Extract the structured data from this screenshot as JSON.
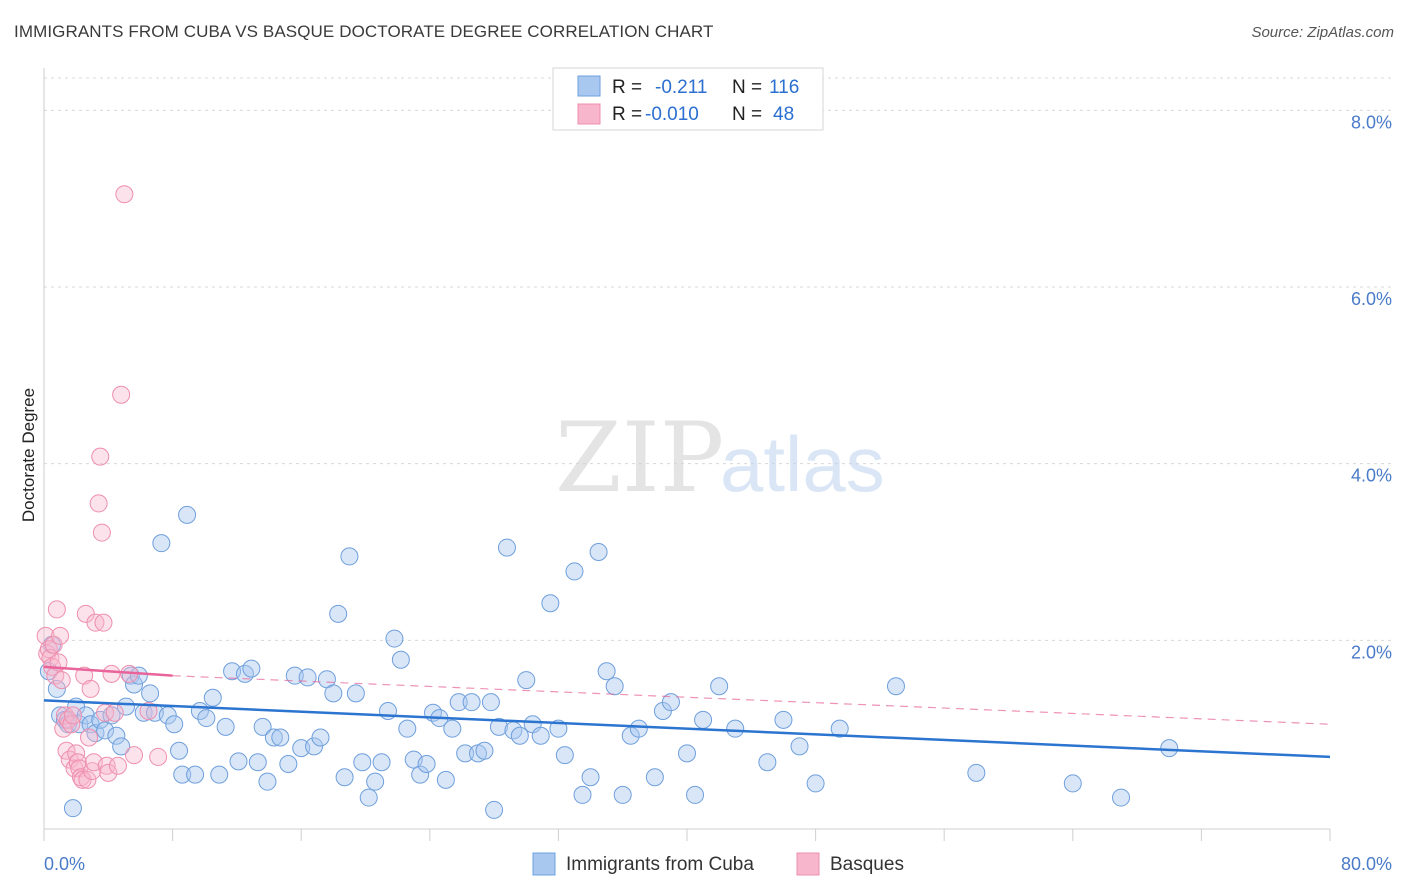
{
  "title": "IMMIGRANTS FROM CUBA VS BASQUE DOCTORATE DEGREE CORRELATION CHART",
  "source": "Source: ZipAtlas.com",
  "watermark": {
    "zip": "ZIP",
    "atlas": "atlas"
  },
  "colors": {
    "blue_fill": "#a8c8f0",
    "blue_stroke": "#6f9fdc",
    "blue_line": "#2b74d0",
    "pink_fill": "#f7b6cc",
    "pink_stroke": "#ee8fae",
    "pink_line": "#e8649a",
    "grid": "#d8d8d8",
    "axis_label": "#4a7bc8"
  },
  "legend_top": {
    "rows": [
      {
        "r_label": "R =",
        "r_value": "-0.211",
        "n_label": "N =",
        "n_value": "116"
      },
      {
        "r_label": "R =",
        "r_value": "-0.010",
        "n_label": "N =",
        "n_value": "48"
      }
    ]
  },
  "chart_data": {
    "type": "scatter",
    "title": "IMMIGRANTS FROM CUBA VS BASQUE DOCTORATE DEGREE CORRELATION CHART",
    "xlabel": "",
    "ylabel": "Doctorate Degree",
    "xlim": [
      0,
      80
    ],
    "ylim": [
      0,
      8.4
    ],
    "x_tick_labels": [
      "0.0%",
      "80.0%"
    ],
    "y_ticks": [
      2,
      4,
      6,
      8
    ],
    "y_tick_labels": [
      "2.0%",
      "4.0%",
      "6.0%",
      "8.0%"
    ],
    "legend": [
      "Immigrants from Cuba",
      "Basques"
    ],
    "series": [
      {
        "name": "Immigrants from Cuba",
        "color": "#a8c8f0",
        "trend": {
          "x0": 0,
          "y0": 1.32,
          "x1": 80,
          "y1": 0.68
        },
        "points": [
          [
            0.3,
            1.65
          ],
          [
            0.5,
            1.95
          ],
          [
            0.8,
            1.45
          ],
          [
            1.0,
            1.15
          ],
          [
            1.3,
            1.1
          ],
          [
            1.5,
            1.05
          ],
          [
            2.0,
            1.25
          ],
          [
            2.2,
            1.05
          ],
          [
            2.6,
            1.15
          ],
          [
            2.9,
            1.05
          ],
          [
            3.2,
            0.95
          ],
          [
            3.5,
            1.1
          ],
          [
            3.8,
            0.98
          ],
          [
            4.2,
            1.15
          ],
          [
            4.5,
            0.92
          ],
          [
            4.8,
            0.8
          ],
          [
            5.1,
            1.25
          ],
          [
            5.4,
            1.6
          ],
          [
            5.6,
            1.5
          ],
          [
            5.9,
            1.6
          ],
          [
            6.2,
            1.18
          ],
          [
            6.6,
            1.4
          ],
          [
            6.9,
            1.18
          ],
          [
            7.3,
            3.1
          ],
          [
            7.7,
            1.15
          ],
          [
            8.1,
            1.05
          ],
          [
            8.4,
            0.75
          ],
          [
            8.6,
            0.48
          ],
          [
            8.9,
            3.42
          ],
          [
            9.4,
            0.48
          ],
          [
            9.7,
            1.2
          ],
          [
            10.1,
            1.12
          ],
          [
            10.5,
            1.35
          ],
          [
            10.9,
            0.48
          ],
          [
            11.3,
            1.02
          ],
          [
            11.7,
            1.65
          ],
          [
            12.1,
            0.63
          ],
          [
            12.5,
            1.62
          ],
          [
            12.9,
            1.68
          ],
          [
            13.3,
            0.62
          ],
          [
            13.6,
            1.02
          ],
          [
            13.9,
            0.4
          ],
          [
            14.3,
            0.9
          ],
          [
            14.7,
            0.9
          ],
          [
            15.2,
            0.6
          ],
          [
            15.6,
            1.6
          ],
          [
            16.0,
            0.78
          ],
          [
            16.4,
            1.58
          ],
          [
            16.8,
            0.8
          ],
          [
            17.2,
            0.9
          ],
          [
            17.6,
            1.56
          ],
          [
            18.0,
            1.4
          ],
          [
            18.3,
            2.3
          ],
          [
            18.7,
            0.45
          ],
          [
            19.0,
            2.95
          ],
          [
            19.4,
            1.4
          ],
          [
            19.8,
            0.62
          ],
          [
            20.2,
            0.22
          ],
          [
            20.6,
            0.4
          ],
          [
            21.0,
            0.62
          ],
          [
            21.4,
            1.2
          ],
          [
            21.8,
            2.02
          ],
          [
            22.2,
            1.78
          ],
          [
            22.6,
            1.0
          ],
          [
            23.0,
            0.65
          ],
          [
            23.4,
            0.48
          ],
          [
            23.8,
            0.6
          ],
          [
            24.2,
            1.18
          ],
          [
            24.6,
            1.12
          ],
          [
            25.0,
            0.42
          ],
          [
            25.4,
            1.0
          ],
          [
            25.8,
            1.3
          ],
          [
            26.2,
            0.72
          ],
          [
            26.6,
            1.3
          ],
          [
            27.0,
            0.72
          ],
          [
            27.4,
            0.75
          ],
          [
            27.8,
            1.3
          ],
          [
            28.3,
            1.02
          ],
          [
            28.8,
            3.05
          ],
          [
            29.2,
            0.98
          ],
          [
            29.6,
            0.92
          ],
          [
            30.0,
            1.55
          ],
          [
            30.4,
            1.05
          ],
          [
            30.9,
            0.92
          ],
          [
            31.5,
            2.42
          ],
          [
            32.0,
            1.0
          ],
          [
            32.4,
            0.7
          ],
          [
            33.0,
            2.78
          ],
          [
            33.5,
            0.25
          ],
          [
            34.0,
            0.45
          ],
          [
            34.5,
            3.0
          ],
          [
            35.0,
            1.65
          ],
          [
            35.5,
            1.48
          ],
          [
            36.0,
            0.25
          ],
          [
            36.5,
            0.92
          ],
          [
            37.0,
            1.0
          ],
          [
            38.0,
            0.45
          ],
          [
            38.5,
            1.2
          ],
          [
            39.0,
            1.3
          ],
          [
            40.0,
            0.72
          ],
          [
            40.5,
            0.25
          ],
          [
            41.0,
            1.1
          ],
          [
            42.0,
            1.48
          ],
          [
            43.0,
            1.0
          ],
          [
            45.0,
            0.62
          ],
          [
            46.0,
            1.1
          ],
          [
            47.0,
            0.8
          ],
          [
            48.0,
            0.38
          ],
          [
            49.5,
            1.0
          ],
          [
            53.0,
            1.48
          ],
          [
            58.0,
            0.5
          ],
          [
            64.0,
            0.38
          ],
          [
            67.0,
            0.22
          ],
          [
            70.0,
            0.78
          ],
          [
            1.8,
            0.1
          ],
          [
            28.0,
            0.08
          ]
        ]
      },
      {
        "name": "Basques",
        "color": "#f7b6cc",
        "trend": {
          "x0": 0,
          "y0": 1.7,
          "x1": 8,
          "y1": 1.6
        },
        "trend_dashed": {
          "x0": 8,
          "y0": 1.6,
          "x1": 80,
          "y1": 1.05
        },
        "points": [
          [
            0.1,
            2.05
          ],
          [
            0.2,
            1.85
          ],
          [
            0.3,
            1.9
          ],
          [
            0.4,
            1.8
          ],
          [
            0.5,
            1.7
          ],
          [
            0.6,
            1.95
          ],
          [
            0.7,
            1.6
          ],
          [
            0.8,
            2.35
          ],
          [
            0.9,
            1.75
          ],
          [
            1.0,
            2.05
          ],
          [
            1.1,
            1.55
          ],
          [
            1.2,
            1.0
          ],
          [
            1.3,
            1.15
          ],
          [
            1.4,
            0.75
          ],
          [
            1.5,
            1.1
          ],
          [
            1.6,
            0.65
          ],
          [
            1.7,
            1.05
          ],
          [
            1.8,
            1.15
          ],
          [
            1.9,
            0.55
          ],
          [
            2.0,
            0.72
          ],
          [
            2.1,
            0.62
          ],
          [
            2.2,
            0.55
          ],
          [
            2.3,
            0.45
          ],
          [
            2.4,
            0.42
          ],
          [
            2.5,
            1.6
          ],
          [
            2.6,
            2.3
          ],
          [
            2.7,
            0.42
          ],
          [
            2.8,
            0.9
          ],
          [
            2.9,
            1.45
          ],
          [
            3.0,
            0.52
          ],
          [
            3.1,
            0.62
          ],
          [
            3.2,
            2.2
          ],
          [
            3.4,
            3.55
          ],
          [
            3.5,
            4.08
          ],
          [
            3.6,
            3.22
          ],
          [
            3.7,
            2.2
          ],
          [
            3.8,
            1.18
          ],
          [
            3.9,
            0.58
          ],
          [
            4.0,
            0.5
          ],
          [
            4.2,
            1.62
          ],
          [
            4.4,
            1.18
          ],
          [
            4.6,
            0.58
          ],
          [
            4.8,
            4.78
          ],
          [
            5.0,
            7.05
          ],
          [
            5.3,
            1.62
          ],
          [
            5.6,
            0.7
          ],
          [
            6.5,
            1.2
          ],
          [
            7.1,
            0.68
          ]
        ]
      }
    ]
  },
  "legend_bottom": {
    "items": [
      "Immigrants from Cuba",
      "Basques"
    ]
  }
}
